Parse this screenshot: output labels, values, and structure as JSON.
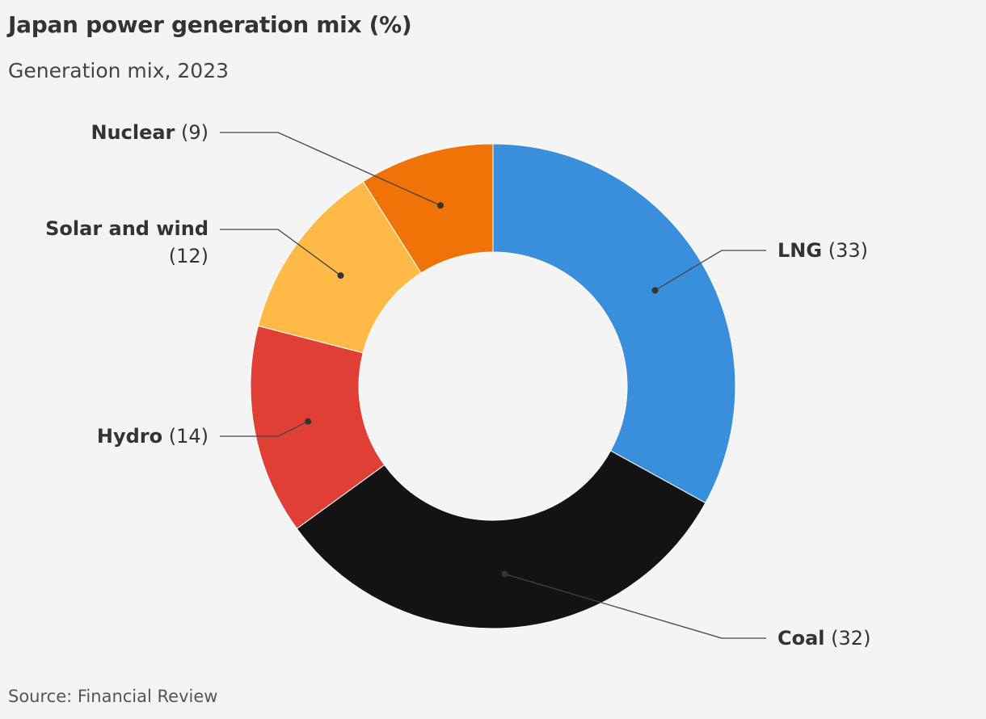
{
  "title": "Japan power generation mix (%)",
  "subtitle": "Generation mix, 2023",
  "source": "Source: Financial Review",
  "chart_data": {
    "type": "pie",
    "variant": "donut",
    "title": "Japan power generation mix (%)",
    "subtitle": "Generation mix, 2023",
    "unit": "%",
    "slices": [
      {
        "label": "LNG",
        "value": 33,
        "value_text": "(33)",
        "color": "#3a8fdc",
        "label_side": "right"
      },
      {
        "label": "Coal",
        "value": 32,
        "value_text": "(32)",
        "color": "#131313",
        "label_side": "right"
      },
      {
        "label": "Hydro",
        "value": 14,
        "value_text": "(14)",
        "color": "#e03f36",
        "label_side": "left"
      },
      {
        "label": "Solar and wind",
        "value": 12,
        "value_text": "(12)",
        "color": "#ffb946",
        "label_side": "left"
      },
      {
        "label": "Nuclear",
        "value": 9,
        "value_text": "(9)",
        "color": "#f07308",
        "label_side": "left"
      }
    ]
  }
}
